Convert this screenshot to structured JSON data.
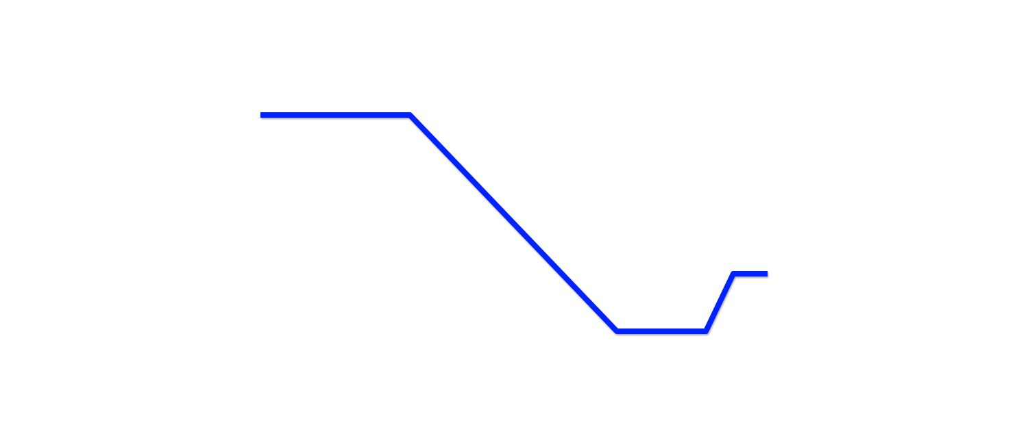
{
  "chart_data": {
    "type": "line",
    "title": "",
    "xlabel": "",
    "ylabel": "",
    "grid": false,
    "axes_visible": false,
    "legend": "none",
    "xlim": [
      0,
      740
    ],
    "ylim": [
      0,
      316
    ],
    "series": [
      {
        "color": "#0022ff",
        "x": [
          0,
          218,
          520,
          650,
          690,
          740
        ],
        "y": [
          316,
          316,
          0,
          0,
          84,
          84
        ]
      }
    ]
  }
}
